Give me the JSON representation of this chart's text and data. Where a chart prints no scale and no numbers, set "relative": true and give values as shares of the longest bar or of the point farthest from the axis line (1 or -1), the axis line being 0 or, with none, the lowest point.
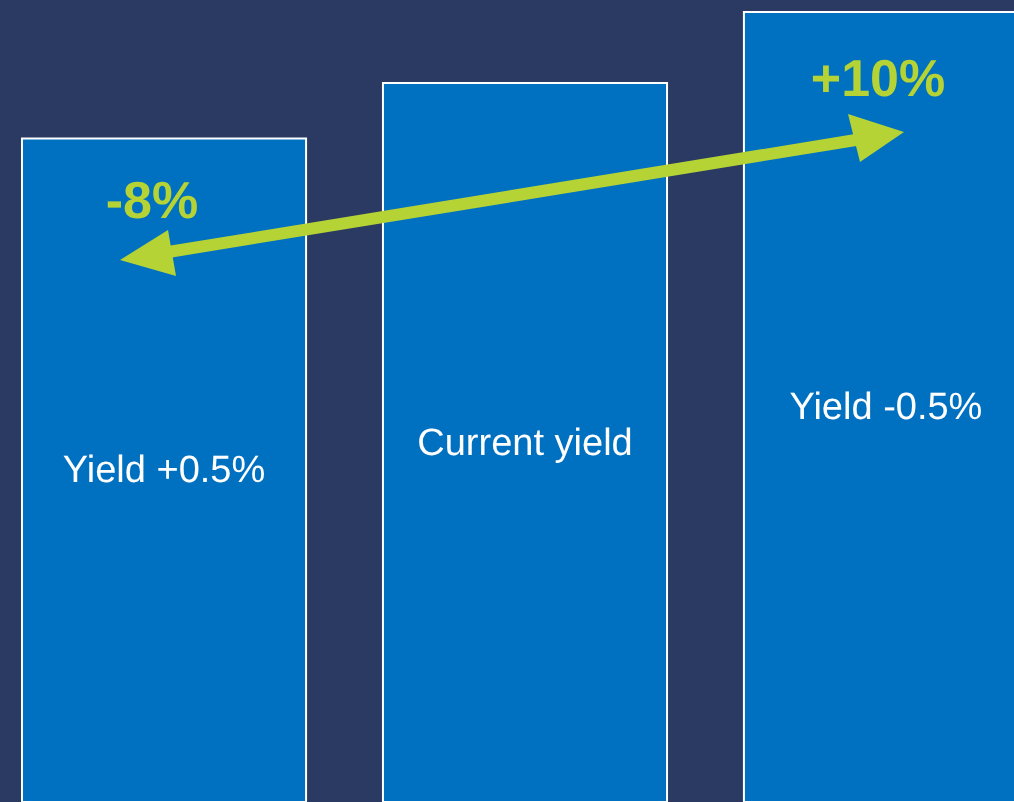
{
  "chart_data": {
    "type": "bar",
    "relative": true,
    "categories": [
      "Yield +0.5%",
      "Current yield",
      "Yield -0.5%"
    ],
    "values": [
      0.84,
      0.91,
      1
    ],
    "color": "#0070c0",
    "annotations": [
      "-8%",
      "+10%"
    ]
  }
}
